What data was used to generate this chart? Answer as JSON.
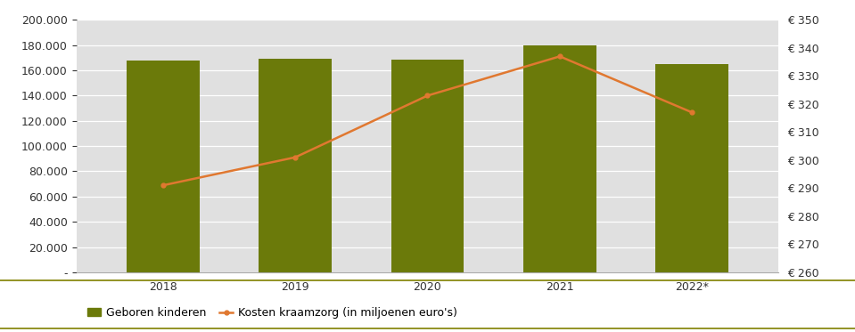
{
  "years": [
    "2018",
    "2019",
    "2020",
    "2021",
    "2022*"
  ],
  "bar_values": [
    168000,
    169500,
    168500,
    179500,
    165000
  ],
  "line_values": [
    291,
    301,
    323,
    337,
    317
  ],
  "bar_color": "#6b7a0a",
  "line_color": "#e07830",
  "bar_label": "Geboren kinderen",
  "line_label": "Kosten kraamzorg (in miljoenen euro's)",
  "yleft_min": 0,
  "yleft_max": 200000,
  "yleft_ticks": [
    0,
    20000,
    40000,
    60000,
    80000,
    100000,
    120000,
    140000,
    160000,
    180000,
    200000
  ],
  "yright_min": 260,
  "yright_max": 350,
  "yright_ticks": [
    260,
    270,
    280,
    290,
    300,
    310,
    320,
    330,
    340,
    350
  ],
  "plot_bg_color": "#e0e0e0",
  "fig_bg_color": "#ffffff",
  "legend_separator_color": "#808000",
  "bar_width": 0.55
}
